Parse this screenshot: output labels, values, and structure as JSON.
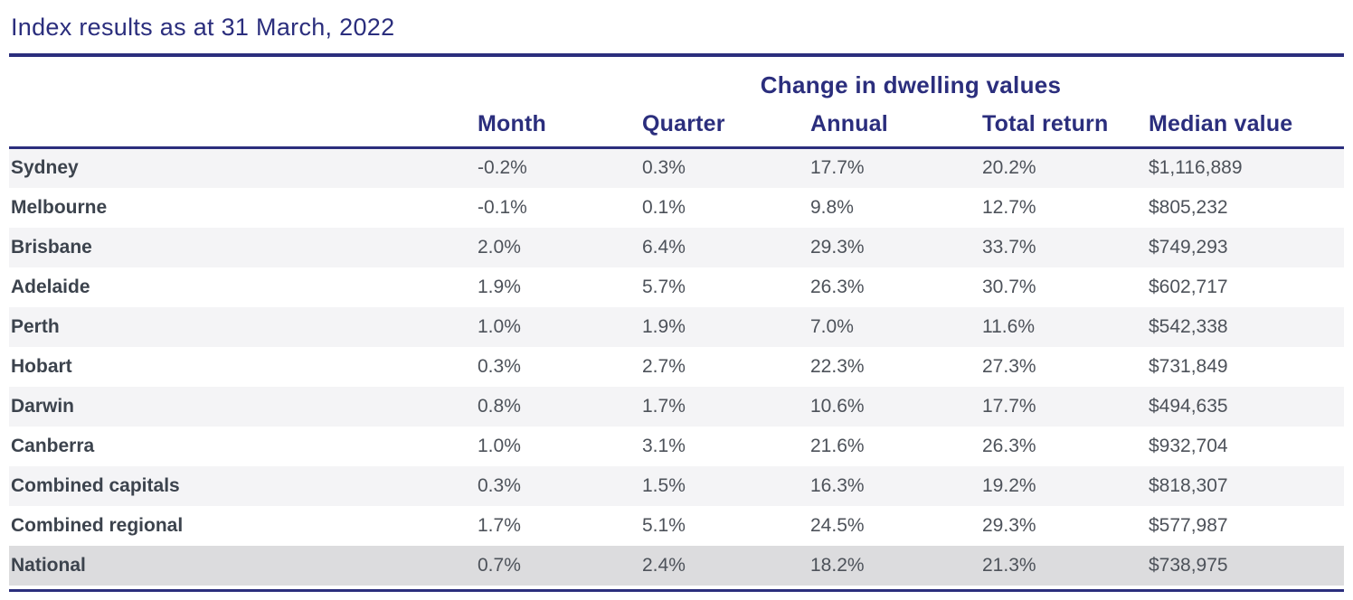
{
  "page": {
    "title": "Index results as at 31 March, 2022"
  },
  "chart_data": {
    "type": "table",
    "title": "Index results as at 31 March, 2022",
    "group_header": "Change in dwelling values",
    "columns": [
      "Month",
      "Quarter",
      "Annual",
      "Total return",
      "Median value"
    ],
    "rows": [
      {
        "region": "Sydney",
        "values": [
          "-0.2%",
          "0.3%",
          "17.7%",
          "20.2%",
          "$1,116,889"
        ]
      },
      {
        "region": "Melbourne",
        "values": [
          "-0.1%",
          "0.1%",
          "9.8%",
          "12.7%",
          "$805,232"
        ]
      },
      {
        "region": "Brisbane",
        "values": [
          "2.0%",
          "6.4%",
          "29.3%",
          "33.7%",
          "$749,293"
        ]
      },
      {
        "region": "Adelaide",
        "values": [
          "1.9%",
          "5.7%",
          "26.3%",
          "30.7%",
          "$602,717"
        ]
      },
      {
        "region": "Perth",
        "values": [
          "1.0%",
          "1.9%",
          "7.0%",
          "11.6%",
          "$542,338"
        ]
      },
      {
        "region": "Hobart",
        "values": [
          "0.3%",
          "2.7%",
          "22.3%",
          "27.3%",
          "$731,849"
        ]
      },
      {
        "region": "Darwin",
        "values": [
          "0.8%",
          "1.7%",
          "10.6%",
          "17.7%",
          "$494,635"
        ]
      },
      {
        "region": "Canberra",
        "values": [
          "1.0%",
          "3.1%",
          "21.6%",
          "26.3%",
          "$932,704"
        ]
      },
      {
        "region": "Combined capitals",
        "values": [
          "0.3%",
          "1.5%",
          "16.3%",
          "19.2%",
          "$818,307"
        ]
      },
      {
        "region": "Combined regional",
        "values": [
          "1.7%",
          "5.1%",
          "24.5%",
          "29.3%",
          "$577,987"
        ]
      },
      {
        "region": "National",
        "values": [
          "0.7%",
          "2.4%",
          "18.2%",
          "21.3%",
          "$738,975"
        ]
      }
    ],
    "highlight_row": "National",
    "layout": {
      "zebra_striping": true,
      "stripe_starts_on_first_row": true
    }
  },
  "colors": {
    "accent_navy": "#2b2e7d",
    "row_stripe": "#f4f4f6",
    "highlight_row_bg": "#dcdcde",
    "region_label_text": "#3c434d",
    "value_text": "#4d525a",
    "background": "#ffffff"
  }
}
